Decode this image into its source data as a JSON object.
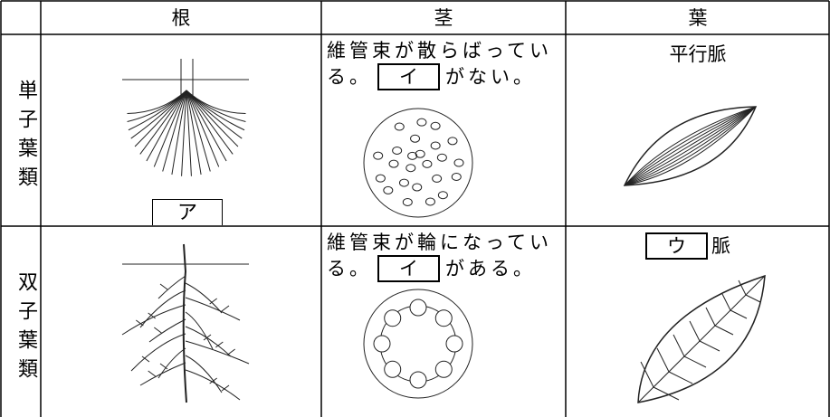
{
  "table": {
    "header": [
      "根",
      "茎",
      "葉"
    ],
    "rows": [
      {
        "label": "単子葉類",
        "root_box": "ア",
        "stem_text": "維管束が散らばっている。",
        "stem_box": "イ",
        "stem_after": "がない。",
        "leaf": "平行脈"
      },
      {
        "label": "双子葉類",
        "stem_text": "維管束が輪になっている。",
        "stem_box": "イ",
        "stem_after": "がある。",
        "leaf_box": "ウ",
        "leaf_after": "脈"
      }
    ]
  }
}
